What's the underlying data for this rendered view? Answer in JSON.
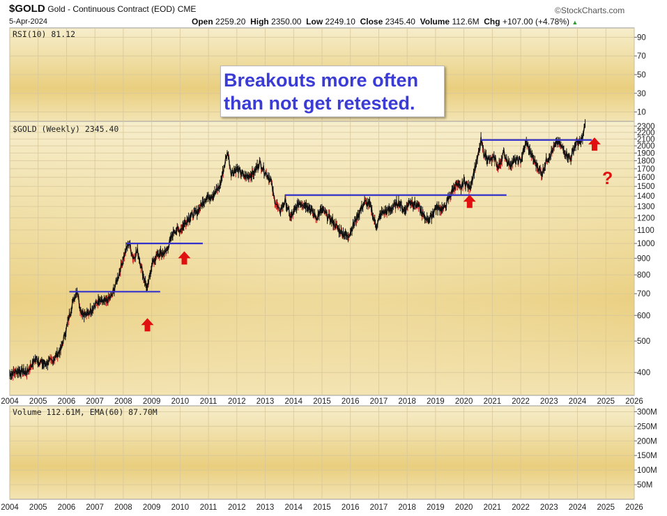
{
  "header": {
    "symbol": "$GOLD",
    "name": "Gold - Continuous Contract (EOD)",
    "exchange": "CME",
    "date": "5-Apr-2024",
    "brand": "StockCharts.com",
    "ohlc": [
      {
        "label": "Open",
        "value": "2259.20"
      },
      {
        "label": "High",
        "value": "2350.00"
      },
      {
        "label": "Low",
        "value": "2249.10"
      },
      {
        "label": "Close",
        "value": "2345.40"
      },
      {
        "label": "Volume",
        "value": "112.6M"
      },
      {
        "label": "Chg",
        "value": "+107.00 (+4.78%)"
      }
    ],
    "chg_icon": "up-triangle-icon"
  },
  "annotation": {
    "line1": "Breakouts more often",
    "line2": "than not get retested.",
    "question_mark": "?"
  },
  "colors": {
    "background_top": "#f6edcb",
    "background_mid": "#e9ce7e",
    "grid": "#d8c79a",
    "price": "#101010",
    "down_accent": "#cc2222",
    "breakout_line": "#3333cc",
    "arrow": "#e01010",
    "annotation_text": "#3b3bd6"
  },
  "chart_data": [
    {
      "type": "line",
      "panel": "indicator",
      "legend": "RSI(10) 81.12",
      "yticks": [
        10,
        30,
        50,
        70,
        90
      ],
      "ylim": [
        0,
        100
      ],
      "series": []
    },
    {
      "type": "line",
      "panel": "price",
      "legend": "$GOLD (Weekly) 2345.40",
      "x_ticks": [
        "2004",
        "2005",
        "2006",
        "2007",
        "2008",
        "2009",
        "2010",
        "2011",
        "2012",
        "2013",
        "2014",
        "2015",
        "2016",
        "2017",
        "2018",
        "2019",
        "2020",
        "2021",
        "2022",
        "2023",
        "2024",
        "2025",
        "2026"
      ],
      "yticks": [
        400,
        500,
        600,
        700,
        800,
        900,
        1000,
        1100,
        1200,
        1300,
        1400,
        1500,
        1600,
        1700,
        1800,
        1900,
        2000,
        2100,
        2200,
        2300
      ],
      "ylim": [
        340,
        2380
      ],
      "xlim": [
        2004.0,
        2026.0
      ],
      "points": [
        [
          2004.0,
          395
        ],
        [
          2004.3,
          405
        ],
        [
          2004.6,
          400
        ],
        [
          2004.9,
          440
        ],
        [
          2005.2,
          425
        ],
        [
          2005.5,
          435
        ],
        [
          2005.8,
          470
        ],
        [
          2006.0,
          550
        ],
        [
          2006.2,
          650
        ],
        [
          2006.37,
          720
        ],
        [
          2006.5,
          620
        ],
        [
          2006.7,
          600
        ],
        [
          2006.9,
          630
        ],
        [
          2007.1,
          660
        ],
        [
          2007.4,
          660
        ],
        [
          2007.6,
          690
        ],
        [
          2007.8,
          780
        ],
        [
          2008.0,
          900
        ],
        [
          2008.2,
          1010
        ],
        [
          2008.35,
          900
        ],
        [
          2008.5,
          950
        ],
        [
          2008.7,
          800
        ],
        [
          2008.85,
          720
        ],
        [
          2009.0,
          860
        ],
        [
          2009.2,
          920
        ],
        [
          2009.5,
          940
        ],
        [
          2009.8,
          1100
        ],
        [
          2010.0,
          1100
        ],
        [
          2010.3,
          1200
        ],
        [
          2010.6,
          1250
        ],
        [
          2010.9,
          1380
        ],
        [
          2011.2,
          1420
        ],
        [
          2011.4,
          1500
        ],
        [
          2011.6,
          1800
        ],
        [
          2011.68,
          1920
        ],
        [
          2011.8,
          1650
        ],
        [
          2012.0,
          1700
        ],
        [
          2012.3,
          1600
        ],
        [
          2012.6,
          1650
        ],
        [
          2012.8,
          1780
        ],
        [
          2013.0,
          1660
        ],
        [
          2013.2,
          1570
        ],
        [
          2013.3,
          1390
        ],
        [
          2013.5,
          1250
        ],
        [
          2013.7,
          1350
        ],
        [
          2013.9,
          1200
        ],
        [
          2014.2,
          1340
        ],
        [
          2014.5,
          1310
        ],
        [
          2014.8,
          1200
        ],
        [
          2015.0,
          1270
        ],
        [
          2015.3,
          1190
        ],
        [
          2015.6,
          1100
        ],
        [
          2015.9,
          1050
        ],
        [
          2016.0,
          1090
        ],
        [
          2016.3,
          1240
        ],
        [
          2016.5,
          1340
        ],
        [
          2016.7,
          1310
        ],
        [
          2016.9,
          1130
        ],
        [
          2017.1,
          1240
        ],
        [
          2017.4,
          1270
        ],
        [
          2017.7,
          1340
        ],
        [
          2017.9,
          1260
        ],
        [
          2018.1,
          1350
        ],
        [
          2018.4,
          1300
        ],
        [
          2018.6,
          1200
        ],
        [
          2018.8,
          1190
        ],
        [
          2019.0,
          1290
        ],
        [
          2019.3,
          1280
        ],
        [
          2019.5,
          1400
        ],
        [
          2019.7,
          1520
        ],
        [
          2019.9,
          1480
        ],
        [
          2020.0,
          1560
        ],
        [
          2020.2,
          1480
        ],
        [
          2020.4,
          1720
        ],
        [
          2020.55,
          1940
        ],
        [
          2020.6,
          2080
        ],
        [
          2020.7,
          1900
        ],
        [
          2020.9,
          1800
        ],
        [
          2021.1,
          1830
        ],
        [
          2021.2,
          1700
        ],
        [
          2021.4,
          1900
        ],
        [
          2021.6,
          1750
        ],
        [
          2021.8,
          1800
        ],
        [
          2022.0,
          1800
        ],
        [
          2022.2,
          2050
        ],
        [
          2022.4,
          1850
        ],
        [
          2022.6,
          1720
        ],
        [
          2022.75,
          1640
        ],
        [
          2022.9,
          1800
        ],
        [
          2023.1,
          1920
        ],
        [
          2023.3,
          2060
        ],
        [
          2023.5,
          1950
        ],
        [
          2023.75,
          1820
        ],
        [
          2023.9,
          2000
        ],
        [
          2024.0,
          2060
        ],
        [
          2024.1,
          2030
        ],
        [
          2024.2,
          2160
        ],
        [
          2024.27,
          2345
        ]
      ],
      "breakout_levels": [
        {
          "x0": 2006.1,
          "x1": 2009.3,
          "y": 710
        },
        {
          "x0": 2008.1,
          "x1": 2010.8,
          "y": 1000
        },
        {
          "x0": 2013.7,
          "x1": 2021.5,
          "y": 1410
        },
        {
          "x0": 2020.6,
          "x1": 2024.5,
          "y": 2085
        }
      ],
      "retest_arrows": [
        {
          "x": 2008.85,
          "y": 560
        },
        {
          "x": 2010.15,
          "y": 900
        },
        {
          "x": 2020.2,
          "y": 1345
        },
        {
          "x": 2024.6,
          "y": 2020
        }
      ]
    },
    {
      "type": "bar",
      "panel": "volume",
      "legend": "Volume 112.61M, EMA(60) 87.70M",
      "yticks": [
        "50M",
        "100M",
        "150M",
        "200M",
        "250M",
        "300M"
      ],
      "ytick_values": [
        50,
        100,
        150,
        200,
        250,
        300
      ],
      "ylim": [
        0,
        320
      ],
      "series": []
    }
  ]
}
